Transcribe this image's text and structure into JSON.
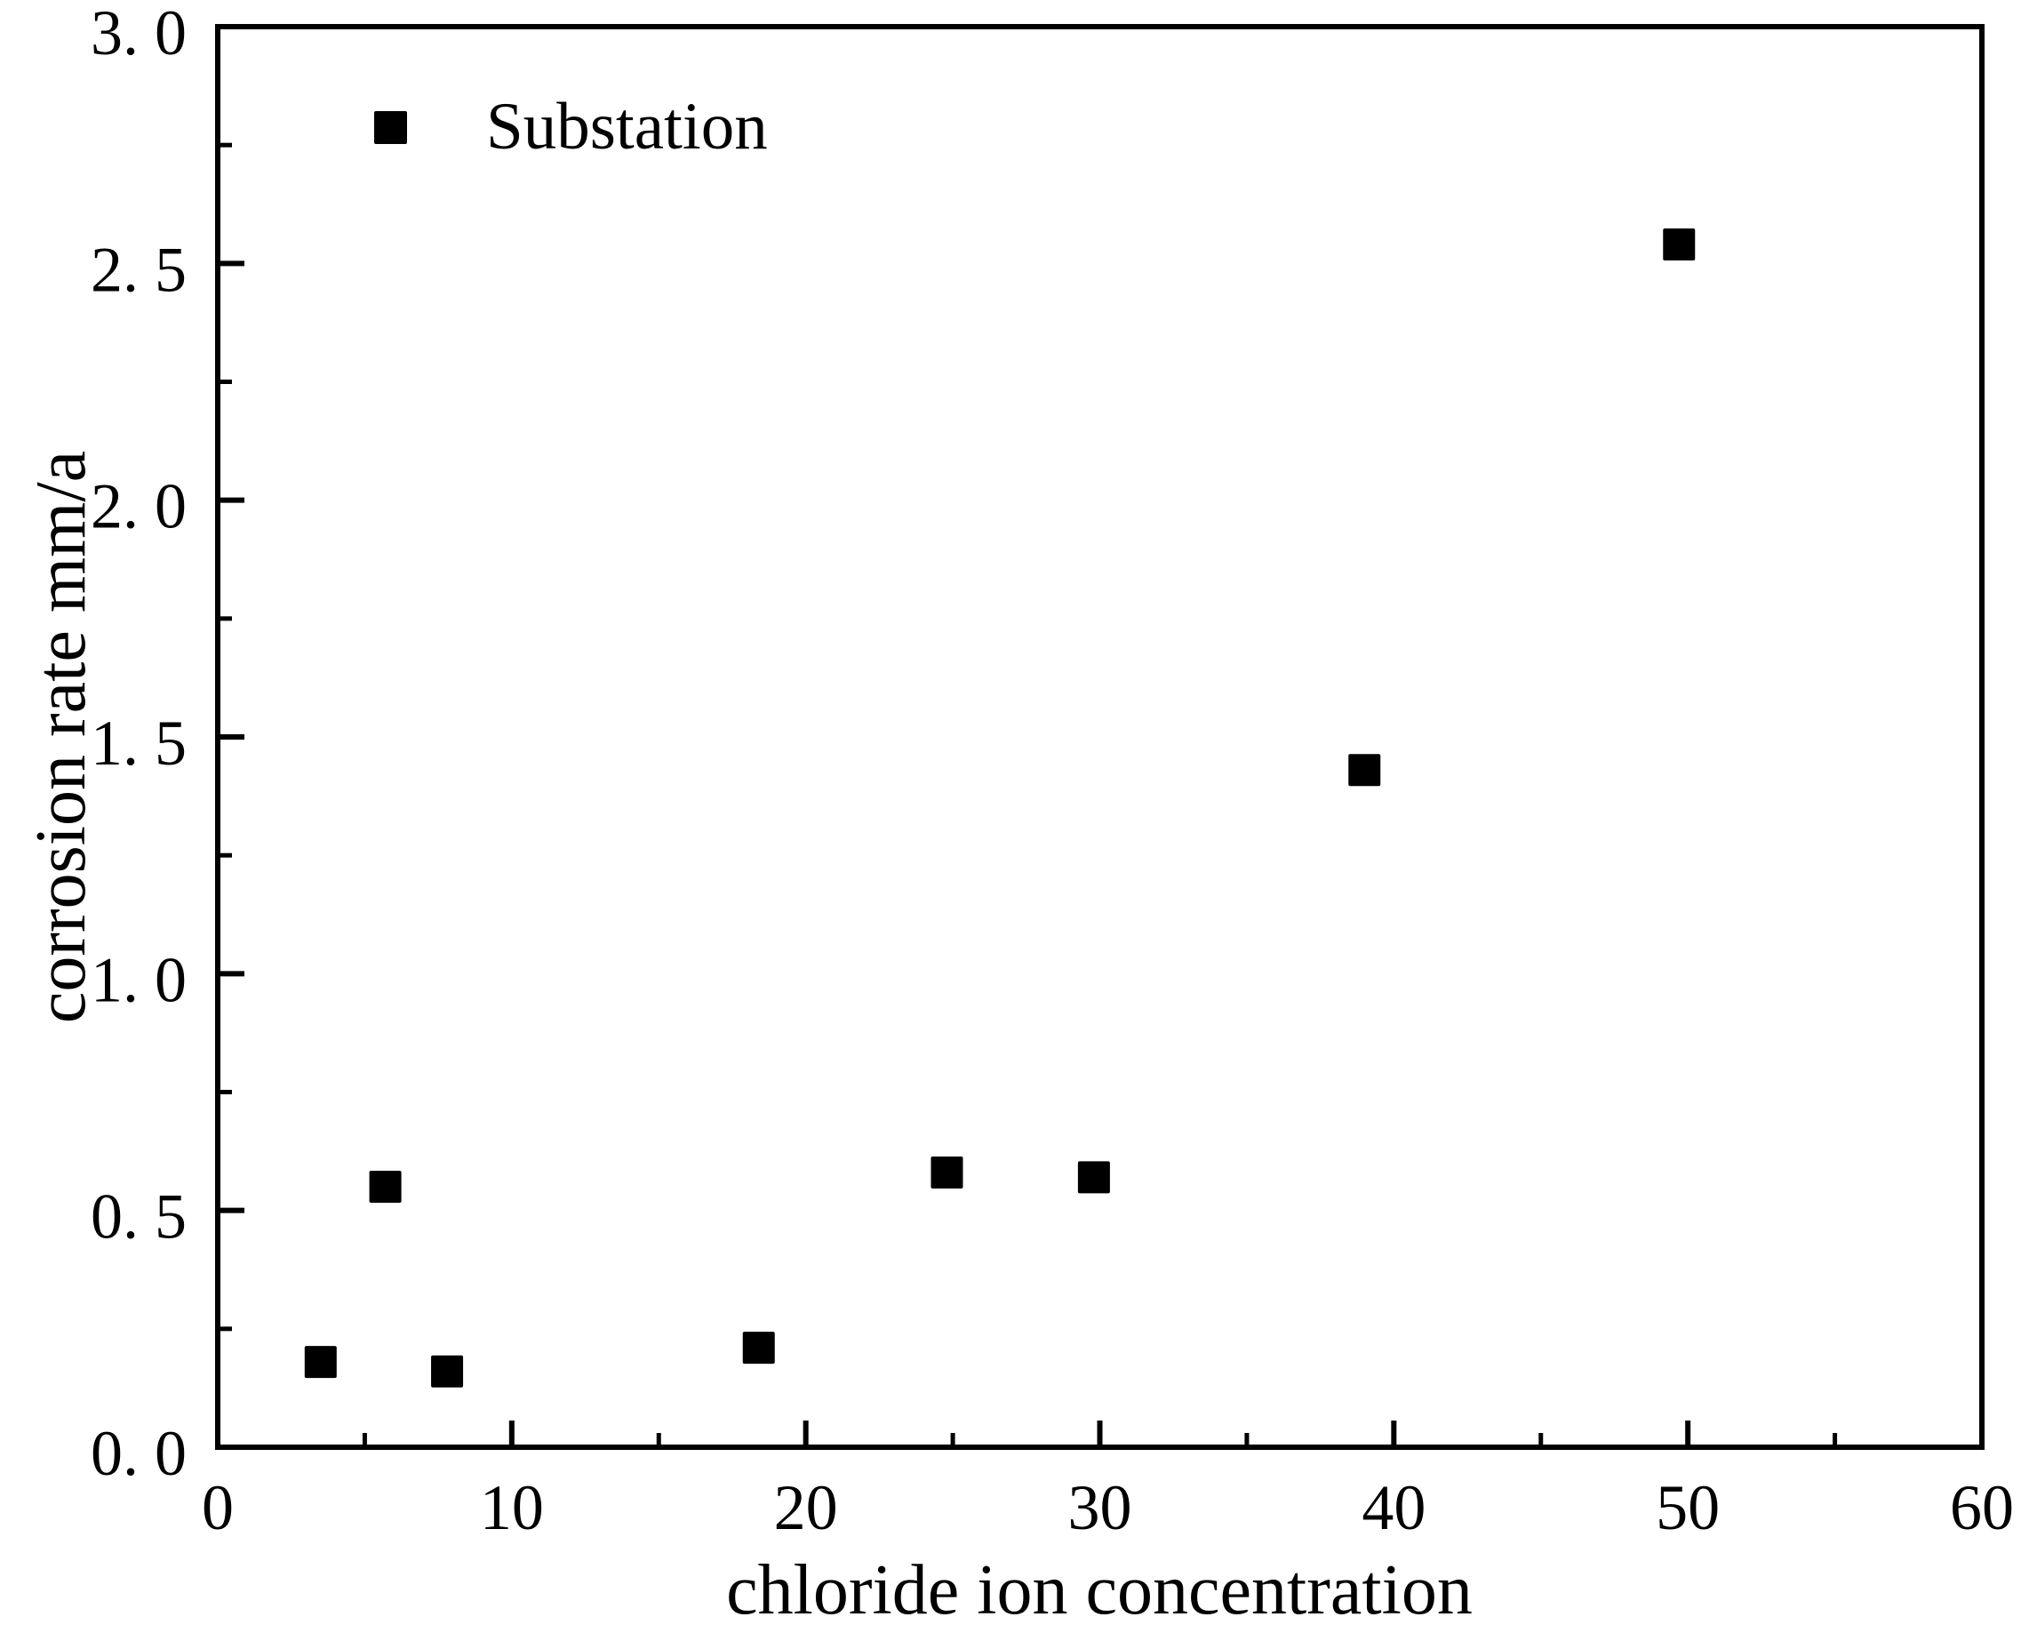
{
  "figure": {
    "background": "#ffffff",
    "foreground": "#000000"
  },
  "chart_data": {
    "type": "scatter",
    "title": "",
    "xlabel": "chloride ion concentration",
    "ylabel": "corrosion rate mm/a",
    "xlim": [
      0,
      60
    ],
    "ylim": [
      0,
      3.0
    ],
    "grid": false,
    "legend_position": "upper-left-inside",
    "x_ticks": {
      "values": [
        0,
        10,
        20,
        30,
        40,
        50,
        60
      ],
      "labels": [
        "0",
        "10",
        "20",
        "30",
        "40",
        "50",
        "60"
      ]
    },
    "y_ticks": {
      "values": [
        0.0,
        0.5,
        1.0,
        1.5,
        2.0,
        2.5,
        3.0
      ],
      "labels": [
        "0. 0",
        "0. 5",
        "1. 0",
        "1. 5",
        "2. 0",
        "2. 5",
        "3. 0"
      ]
    },
    "x_minor_ticks": [
      5,
      15,
      25,
      35,
      45,
      55
    ],
    "y_minor_ticks": [
      0.25,
      0.75,
      1.25,
      1.75,
      2.25,
      2.75
    ],
    "series": [
      {
        "name": "Substation",
        "marker": "filled-square",
        "color": "#000000",
        "points": [
          {
            "x": 3.5,
            "y": 0.18
          },
          {
            "x": 5.7,
            "y": 0.55
          },
          {
            "x": 7.8,
            "y": 0.16
          },
          {
            "x": 18.4,
            "y": 0.21
          },
          {
            "x": 24.8,
            "y": 0.58
          },
          {
            "x": 29.8,
            "y": 0.57
          },
          {
            "x": 39.0,
            "y": 1.43
          },
          {
            "x": 49.7,
            "y": 2.54
          }
        ]
      }
    ]
  }
}
